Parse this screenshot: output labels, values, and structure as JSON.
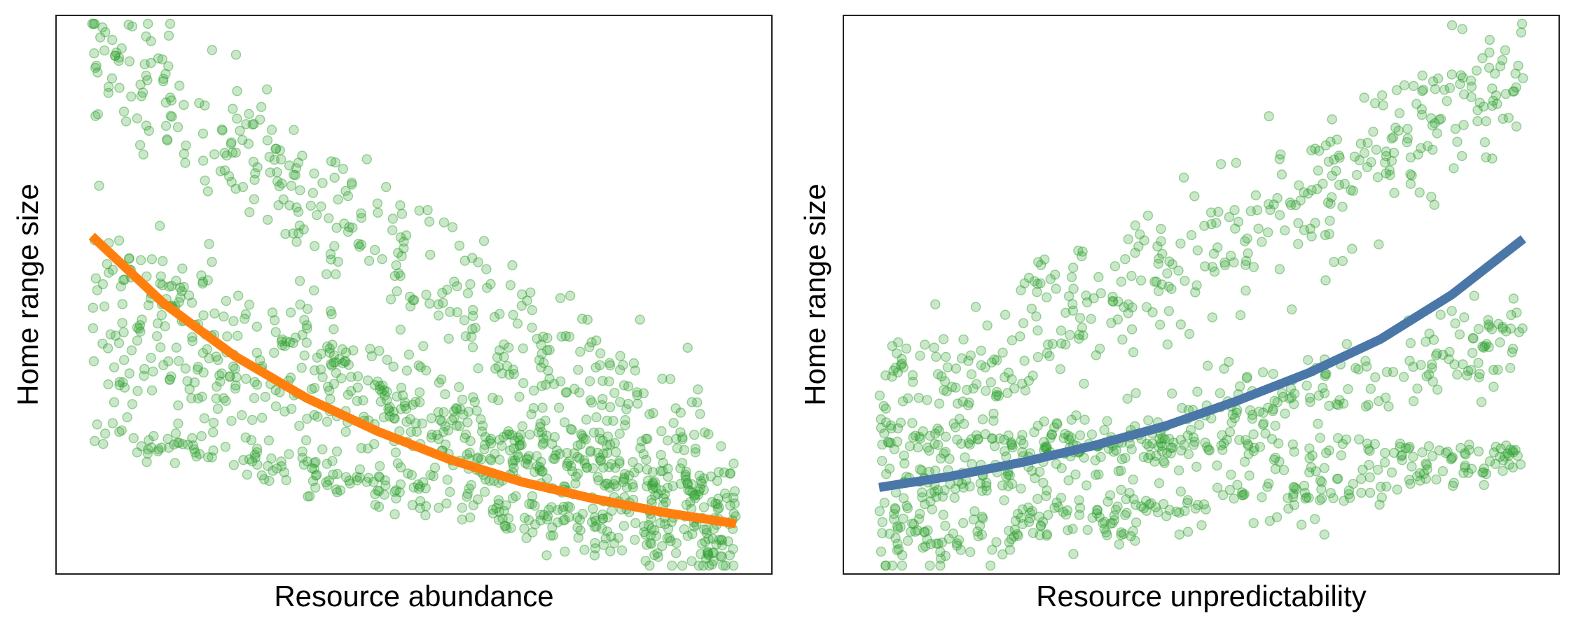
{
  "chart_data": [
    {
      "type": "scatter",
      "title": "",
      "xlabel": "Resource abundance",
      "ylabel": "Home range size",
      "xlim": [
        0,
        1
      ],
      "ylim": [
        0,
        1
      ],
      "ticks_shown": false,
      "grid": false,
      "legend": "none",
      "point_color": "#2ca02c",
      "point_opacity": 0.25,
      "fit_color": "#ff7f0e",
      "fit_line": {
        "x": [
          0.05,
          0.15,
          0.25,
          0.35,
          0.45,
          0.55,
          0.65,
          0.75,
          0.85,
          0.95
        ],
        "y": [
          0.605,
          0.485,
          0.39,
          0.315,
          0.255,
          0.205,
          0.165,
          0.135,
          0.11,
          0.09
        ]
      },
      "point_bands": [
        {
          "from": [
            0.05,
            0.93
          ],
          "to": [
            0.95,
            0.16
          ],
          "spread": 0.13,
          "count": 420
        },
        {
          "from": [
            0.05,
            0.55
          ],
          "to": [
            0.95,
            0.08
          ],
          "spread": 0.08,
          "count": 320
        },
        {
          "from": [
            0.05,
            0.26
          ],
          "to": [
            0.95,
            0.03
          ],
          "spread": 0.045,
          "count": 260
        },
        {
          "from": [
            0.05,
            0.4
          ],
          "to": [
            0.95,
            0.1
          ],
          "spread": 0.09,
          "count": 300
        }
      ]
    },
    {
      "type": "scatter",
      "title": "",
      "xlabel": "Resource unpredictability",
      "ylabel": "Home range size",
      "xlim": [
        0,
        1
      ],
      "ylim": [
        0,
        1
      ],
      "ticks_shown": false,
      "grid": false,
      "legend": "none",
      "point_color": "#2ca02c",
      "point_opacity": 0.25,
      "fit_color": "#4a77a8",
      "fit_line": {
        "x": [
          0.05,
          0.15,
          0.25,
          0.35,
          0.45,
          0.55,
          0.65,
          0.75,
          0.85,
          0.95
        ],
        "y": [
          0.155,
          0.175,
          0.2,
          0.23,
          0.265,
          0.31,
          0.36,
          0.42,
          0.5,
          0.6
        ]
      },
      "point_bands": [
        {
          "from": [
            0.05,
            0.28
          ],
          "to": [
            0.95,
            0.88
          ],
          "spread": 0.13,
          "count": 420
        },
        {
          "from": [
            0.05,
            0.12
          ],
          "to": [
            0.95,
            0.42
          ],
          "spread": 0.08,
          "count": 320
        },
        {
          "from": [
            0.05,
            0.05
          ],
          "to": [
            0.95,
            0.2
          ],
          "spread": 0.05,
          "count": 260
        },
        {
          "from": [
            0.05,
            0.24
          ],
          "to": [
            0.95,
            0.22
          ],
          "spread": 0.03,
          "count": 160
        }
      ]
    }
  ]
}
